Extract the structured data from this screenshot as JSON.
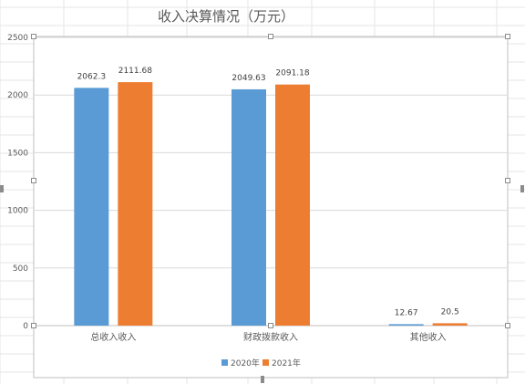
{
  "chart_data": {
    "type": "bar",
    "title": "收入决算情况（万元）",
    "categories": [
      "总收入收入",
      "财政拨款收入",
      "其他收入"
    ],
    "series": [
      {
        "name": "2020年",
        "values": [
          2062.3,
          2049.63,
          12.67
        ],
        "labels": [
          "2062.3",
          "2049.63",
          "12.67"
        ],
        "color": "#5b9bd5"
      },
      {
        "name": "2021年",
        "values": [
          2111.68,
          2091.18,
          20.5
        ],
        "labels": [
          "2111.68",
          "2091.18",
          "20.5"
        ],
        "color": "#ed7d31"
      }
    ],
    "yticks": [
      "0",
      "500",
      "1000",
      "1500",
      "2000",
      "2500"
    ],
    "ylim": [
      0,
      2500
    ],
    "grid": true,
    "legend": "bottom"
  }
}
